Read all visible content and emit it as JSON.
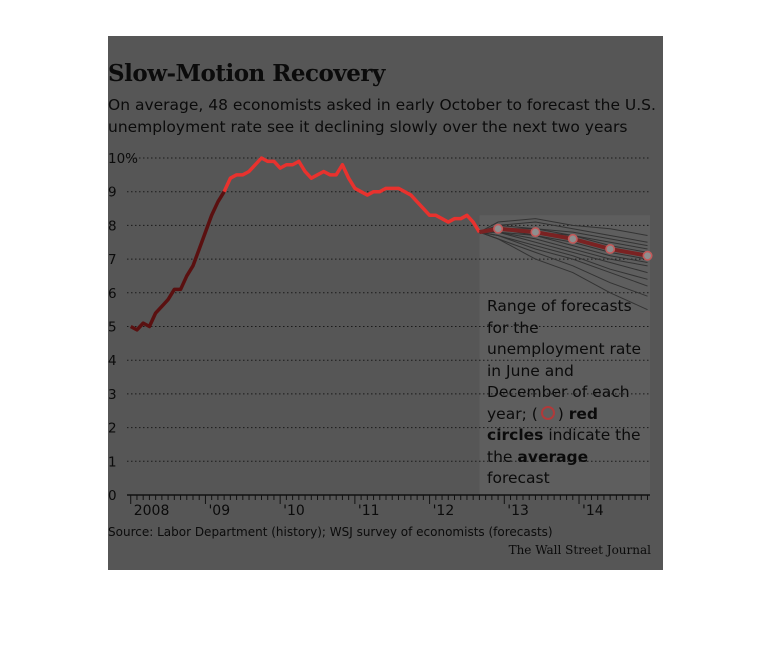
{
  "header": {
    "title": "Slow-Motion Recovery",
    "subtitle": "On average, 48 economists asked in early October to forecast the U.S. unemployment rate see it declining slowly over the next two years"
  },
  "annotation": {
    "line1": "Range of forecasts for the unemployment rate in June and December of each year; (",
    "line2": ") ",
    "red_circles": "red circles",
    "line3": " indicate the the ",
    "average": "average",
    "line4": " forecast"
  },
  "footer": {
    "source": "Source: Labor Department (history); WSJ survey of economists (forecasts)",
    "credit": "The Wall Street Journal"
  },
  "colors": {
    "panel": "#565656",
    "history_line": "#e8322e",
    "history_line_early": "#5a1010",
    "forecast_lines": "#333333",
    "avg_circle": "#c15a5a",
    "forecast_band": "#5e5e5e"
  },
  "chart_data": {
    "type": "line",
    "title": "Slow-Motion Recovery",
    "xlabel": "",
    "ylabel": "",
    "ylim": [
      0,
      10
    ],
    "y_ticks": [
      "0",
      "1",
      "2",
      "3",
      "4",
      "5",
      "6",
      "7",
      "8",
      "9",
      "10%"
    ],
    "x_tick_labels": [
      {
        "label": "2008",
        "x": 2008.0
      },
      {
        "label": "'09",
        "x": 2009.0
      },
      {
        "label": "'10",
        "x": 2010.0
      },
      {
        "label": "'11",
        "x": 2011.0
      },
      {
        "label": "'12",
        "x": 2012.0
      },
      {
        "label": "'13",
        "x": 2013.0
      },
      {
        "label": "'14",
        "x": 2014.0
      }
    ],
    "xlim": [
      2007.95,
      2014.95
    ],
    "grid": true,
    "series": [
      {
        "kind": "history",
        "x": [
          2008.0,
          2008.083,
          2008.167,
          2008.25,
          2008.333,
          2008.417,
          2008.5,
          2008.583,
          2008.667,
          2008.75,
          2008.833,
          2008.917,
          2009.0,
          2009.083,
          2009.167,
          2009.25,
          2009.333,
          2009.417,
          2009.5,
          2009.583,
          2009.667,
          2009.75,
          2009.833,
          2009.917,
          2010.0,
          2010.083,
          2010.167,
          2010.25,
          2010.333,
          2010.417,
          2010.5,
          2010.583,
          2010.667,
          2010.75,
          2010.833,
          2010.917,
          2011.0,
          2011.083,
          2011.167,
          2011.25,
          2011.333,
          2011.417,
          2011.5,
          2011.583,
          2011.667,
          2011.75,
          2011.833,
          2011.917,
          2012.0,
          2012.083,
          2012.167,
          2012.25,
          2012.333,
          2012.417,
          2012.5,
          2012.583,
          2012.667
        ],
        "y": [
          5.0,
          4.9,
          5.1,
          5.0,
          5.4,
          5.6,
          5.8,
          6.1,
          6.1,
          6.5,
          6.8,
          7.3,
          7.8,
          8.3,
          8.7,
          9.0,
          9.4,
          9.5,
          9.5,
          9.6,
          9.8,
          10.0,
          9.9,
          9.9,
          9.7,
          9.8,
          9.8,
          9.9,
          9.6,
          9.4,
          9.5,
          9.6,
          9.5,
          9.5,
          9.8,
          9.4,
          9.1,
          9.0,
          8.9,
          9.0,
          9.0,
          9.1,
          9.1,
          9.1,
          9.0,
          8.9,
          8.7,
          8.5,
          8.3,
          8.3,
          8.2,
          8.1,
          8.2,
          8.2,
          8.3,
          8.1,
          7.8
        ]
      },
      {
        "kind": "average_forecast",
        "x": [
          2012.667,
          2012.917,
          2013.417,
          2013.917,
          2014.417,
          2014.917
        ],
        "y": [
          7.8,
          7.9,
          7.8,
          7.6,
          7.3,
          7.1
        ]
      }
    ],
    "forecast_range": {
      "x": [
        2012.667,
        2012.917,
        2013.417,
        2013.917,
        2014.417,
        2014.917
      ],
      "lines": [
        [
          7.8,
          8.1,
          8.2,
          8.0,
          7.9,
          7.7
        ],
        [
          7.8,
          8.0,
          8.1,
          7.9,
          7.7,
          7.5
        ],
        [
          7.8,
          8.0,
          7.9,
          7.8,
          7.6,
          7.4
        ],
        [
          7.8,
          7.9,
          7.9,
          7.7,
          7.5,
          7.3
        ],
        [
          7.8,
          7.9,
          7.8,
          7.7,
          7.4,
          7.2
        ],
        [
          7.8,
          7.9,
          7.8,
          7.6,
          7.3,
          7.1
        ],
        [
          7.8,
          7.9,
          7.7,
          7.5,
          7.2,
          7.0
        ],
        [
          7.8,
          7.8,
          7.7,
          7.4,
          7.1,
          6.9
        ],
        [
          7.8,
          7.8,
          7.6,
          7.3,
          7.0,
          6.8
        ],
        [
          7.8,
          7.8,
          7.5,
          7.2,
          6.9,
          6.6
        ],
        [
          7.8,
          7.7,
          7.4,
          7.1,
          6.7,
          6.4
        ],
        [
          7.8,
          7.7,
          7.3,
          7.0,
          6.6,
          6.2
        ],
        [
          7.8,
          7.6,
          7.2,
          6.8,
          6.3,
          5.9
        ],
        [
          7.8,
          7.6,
          7.0,
          6.6,
          6.0,
          5.5
        ]
      ]
    }
  }
}
